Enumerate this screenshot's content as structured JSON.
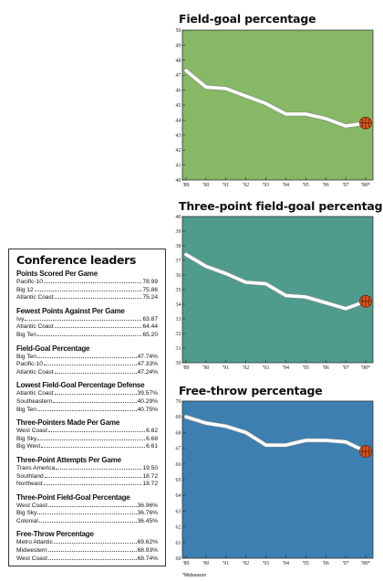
{
  "conference_leaders": {
    "title": "Conference leaders",
    "categories": [
      {
        "title": "Points Scored Per Game",
        "rows": [
          {
            "name": "Pacific-10",
            "value": "78.99"
          },
          {
            "name": "Big 12",
            "value": "75.86"
          },
          {
            "name": "Atlantic Coast",
            "value": "75.24"
          }
        ]
      },
      {
        "title": "Fewest Points Against Per Game",
        "rows": [
          {
            "name": "Ivy",
            "value": "63.87"
          },
          {
            "name": "Atlantic Coast",
            "value": "64.44"
          },
          {
            "name": "Big Ten",
            "value": "65.20"
          }
        ]
      },
      {
        "title": "Field-Goal Percentage",
        "rows": [
          {
            "name": "Big Ten",
            "value": "47.74%"
          },
          {
            "name": "Pacific-10",
            "value": "47.33%"
          },
          {
            "name": "Atlantic Coast",
            "value": "47.24%"
          }
        ]
      },
      {
        "title": "Lowest Field-Goal Percentage Defense",
        "rows": [
          {
            "name": "Atlantic Coast",
            "value": "39.57%"
          },
          {
            "name": "Southeastern",
            "value": "40.29%"
          },
          {
            "name": "Big Ten",
            "value": "40.75%"
          }
        ]
      },
      {
        "title": "Three-Pointers Made Per Game",
        "rows": [
          {
            "name": "West Coast",
            "value": "6.82"
          },
          {
            "name": "Big Sky",
            "value": "6.68"
          },
          {
            "name": "Big West",
            "value": "6.61"
          }
        ]
      },
      {
        "title": "Three-Point Attempts Per Game",
        "rows": [
          {
            "name": "Trans America",
            "value": "19.50"
          },
          {
            "name": "Southland",
            "value": "18.72"
          },
          {
            "name": "Northeast",
            "value": "18.72"
          }
        ]
      },
      {
        "title": "Three-Point Field-Goal Percentage",
        "rows": [
          {
            "name": "West Coast",
            "value": "36.96%"
          },
          {
            "name": "Big Sky",
            "value": "36.76%"
          },
          {
            "name": "Colonial",
            "value": "36.45%"
          }
        ]
      },
      {
        "title": "Free-Throw Percentage",
        "rows": [
          {
            "name": "Metro Atlantic",
            "value": "69.62%"
          },
          {
            "name": "Midwestern",
            "value": "68.93%"
          },
          {
            "name": "West Coast",
            "value": "68.74%"
          }
        ]
      }
    ]
  },
  "footnote": "*Midseason",
  "colors": {
    "panel1": "#86b865",
    "panel2": "#4f9c8d",
    "panel3": "#3c7fb0",
    "line": "#ffffff",
    "ball": "#e0521a"
  },
  "chart_data": [
    {
      "type": "line",
      "title": "Field-goal percentage",
      "x": [
        "'89",
        "'90",
        "'91",
        "'92",
        "'93",
        "'94",
        "'95",
        "'96",
        "'97",
        "'98*"
      ],
      "y": [
        47.3,
        46.2,
        46.1,
        45.6,
        45.1,
        44.4,
        44.4,
        44.1,
        43.6,
        43.8
      ],
      "ylim": [
        40,
        50
      ],
      "yticks": [
        40,
        41,
        42,
        43,
        44,
        45,
        46,
        47,
        48,
        49,
        50
      ],
      "grid": false,
      "legend": "none"
    },
    {
      "type": "line",
      "title": "Three-point field-goal percentage",
      "x": [
        "'89",
        "'90",
        "'91",
        "'92",
        "'93",
        "'94",
        "'95",
        "'96",
        "'97",
        "'98*"
      ],
      "y": [
        37.4,
        36.6,
        36.1,
        35.5,
        35.4,
        34.6,
        34.5,
        34.1,
        33.7,
        34.2
      ],
      "ylim": [
        30,
        40
      ],
      "yticks": [
        30,
        31,
        32,
        33,
        34,
        35,
        36,
        37,
        38,
        39,
        40
      ],
      "grid": false,
      "legend": "none"
    },
    {
      "type": "line",
      "title": "Free-throw percentage",
      "x": [
        "'89",
        "'90",
        "'91",
        "'92",
        "'93",
        "'94",
        "'95",
        "'96",
        "'97",
        "'98*"
      ],
      "y": [
        69.0,
        68.6,
        68.4,
        68.0,
        67.2,
        67.2,
        67.5,
        67.5,
        67.4,
        66.8
      ],
      "ylim": [
        60,
        70
      ],
      "yticks": [
        60,
        61,
        62,
        63,
        64,
        65,
        66,
        67,
        68,
        69,
        70
      ],
      "grid": false,
      "legend": "none"
    }
  ]
}
